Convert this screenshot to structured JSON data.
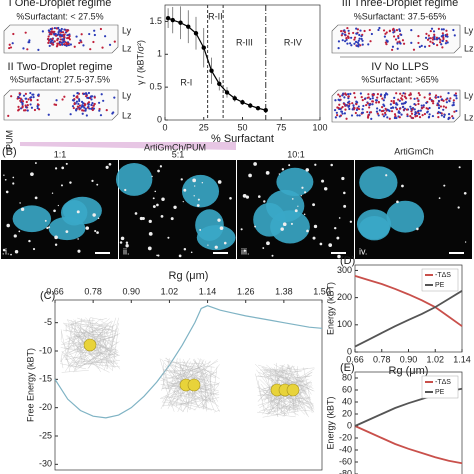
{
  "panel_a": {
    "regimes": [
      {
        "title": "I One-Droplet regime",
        "range": "%Surfactant: < 27.5%"
      },
      {
        "title": "II Two-Droplet regime",
        "range": "%Surfactant: 27.5-37.5%"
      },
      {
        "title": "III Three-Droplet regime",
        "range": "%Surfactant: 37.5-65%"
      },
      {
        "title": "IV No LLPS",
        "range": "%Surfactant: >65%"
      }
    ],
    "box_axes": [
      "Ly",
      "Lz"
    ]
  },
  "panel_b": {
    "label": "(B)",
    "side_label": "PUM",
    "header": "ArtiGmCh/PUM",
    "ratios": [
      "1:1",
      "5:1",
      "10:1"
    ],
    "control": "ArtiGmCh",
    "image_labels": [
      "i.",
      "ii.",
      "iii.",
      "iv."
    ]
  },
  "chart_data": [
    {
      "type": "line",
      "xlabel": "% Surfactant",
      "ylabel": "γ / (kBT/σ²)",
      "color": "#000000",
      "x": [
        2,
        5,
        10,
        15,
        20,
        25,
        30,
        35,
        40,
        45,
        50,
        55,
        60,
        65
      ],
      "values": [
        1.55,
        1.52,
        1.48,
        1.42,
        1.32,
        1.1,
        0.75,
        0.55,
        0.42,
        0.33,
        0.27,
        0.22,
        0.18,
        0.15
      ],
      "errors": [
        0.15,
        0.2,
        0.25,
        0.25,
        0.25,
        0.3,
        0.2,
        0.1,
        0.08,
        0.05,
        0.04,
        0.04,
        0.03,
        0.03
      ],
      "regions": [
        "R-I",
        "R-II",
        "R-III",
        "R-IV"
      ],
      "region_boundaries": [
        27.5,
        37.5,
        65
      ],
      "xlim": [
        0,
        100
      ],
      "xticks": [
        0,
        25,
        50,
        75,
        100
      ],
      "ylim": [
        0,
        1.75
      ],
      "yticks": [
        0,
        0.5,
        1,
        1.5
      ]
    },
    {
      "type": "line",
      "label": "(C)",
      "xlabel": "Rg (μm)",
      "ylabel": "Free Energy (kBT)",
      "color": "#7fb3c4",
      "x": [
        0.66,
        0.7,
        0.74,
        0.78,
        0.82,
        0.86,
        0.9,
        0.94,
        0.98,
        1.02,
        1.06,
        1.1,
        1.12,
        1.14,
        1.18,
        1.22,
        1.26,
        1.3,
        1.34,
        1.38,
        1.42,
        1.46,
        1.5
      ],
      "values": [
        -15,
        -18.5,
        -20.5,
        -21.5,
        -21.8,
        -21.3,
        -20,
        -18,
        -15.5,
        -12.5,
        -9,
        -5,
        -2.5,
        -2,
        -2.8,
        -3.3,
        -3.8,
        -4.2,
        -4.6,
        -5,
        -5.4,
        -5.8,
        -6
      ],
      "xlim": [
        0.66,
        1.5
      ],
      "xticks": [
        0.66,
        0.78,
        {
          "value": 0.9,
          "label": "0.90"
        },
        1.02,
        1.14,
        1.26,
        1.38,
        {
          "value": 1.5,
          "label": "1.50"
        }
      ],
      "ylim": [
        -31,
        -1
      ],
      "yticks": [
        -5,
        -10,
        -15,
        -20,
        -25,
        -30
      ]
    },
    {
      "type": "line",
      "label": "(D)",
      "xlabel": "Rg (μm)",
      "ylabel": "Energy (kBT)",
      "legend": "upper right",
      "x": [
        0.66,
        0.72,
        0.78,
        0.84,
        0.9,
        0.96,
        1.02,
        1.08,
        1.14
      ],
      "series": [
        {
          "name": "-TΔS",
          "color": "#c9504b",
          "values": [
            280,
            265,
            250,
            232,
            212,
            190,
            165,
            130,
            95
          ]
        },
        {
          "name": "PE",
          "color": "#555555",
          "values": [
            20,
            45,
            70,
            95,
            118,
            140,
            165,
            195,
            225
          ]
        }
      ],
      "xlim": [
        0.66,
        1.14
      ],
      "xticks": [
        0.66,
        0.78,
        {
          "value": 0.9,
          "label": "0.90"
        },
        1.02,
        1.14
      ],
      "ylim": [
        0,
        320
      ],
      "yticks": [
        0,
        100,
        200,
        300
      ]
    },
    {
      "type": "line",
      "label": "(E)",
      "ylabel": "Energy (kBT)",
      "legend": "upper right",
      "x": [
        0.66,
        0.72,
        0.78,
        0.84,
        0.9,
        0.96,
        1.02,
        1.08,
        1.14
      ],
      "series": [
        {
          "name": "-TΔS",
          "color": "#c9504b",
          "values": [
            0,
            -10,
            -20,
            -30,
            -38,
            -45,
            -52,
            -58,
            -62
          ]
        },
        {
          "name": "PE",
          "color": "#555555",
          "values": [
            0,
            10,
            20,
            30,
            38,
            45,
            52,
            58,
            62
          ]
        }
      ],
      "xlim": [
        0.66,
        1.14
      ],
      "ylim": [
        -90,
        90
      ],
      "yticks": [
        -80,
        -60,
        -40,
        -20,
        0,
        20,
        40,
        60,
        80
      ]
    }
  ]
}
